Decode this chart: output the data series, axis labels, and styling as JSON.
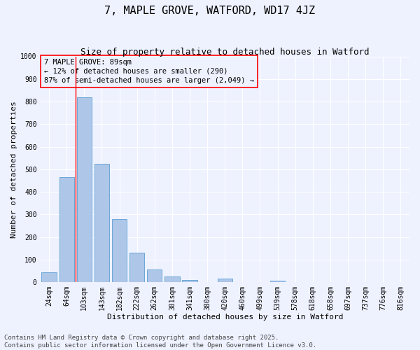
{
  "title": "7, MAPLE GROVE, WATFORD, WD17 4JZ",
  "subtitle": "Size of property relative to detached houses in Watford",
  "xlabel": "Distribution of detached houses by size in Watford",
  "ylabel": "Number of detached properties",
  "footer_line1": "Contains HM Land Registry data © Crown copyright and database right 2025.",
  "footer_line2": "Contains public sector information licensed under the Open Government Licence v3.0.",
  "categories": [
    "24sqm",
    "64sqm",
    "103sqm",
    "143sqm",
    "182sqm",
    "222sqm",
    "262sqm",
    "301sqm",
    "341sqm",
    "380sqm",
    "420sqm",
    "460sqm",
    "499sqm",
    "539sqm",
    "578sqm",
    "618sqm",
    "658sqm",
    "697sqm",
    "737sqm",
    "776sqm",
    "816sqm"
  ],
  "values": [
    45,
    465,
    820,
    525,
    280,
    130,
    58,
    25,
    10,
    0,
    15,
    0,
    0,
    7,
    0,
    0,
    0,
    0,
    0,
    0,
    0
  ],
  "bar_color": "#aec6e8",
  "bar_edge_color": "#5a9fd4",
  "vline_x": 2.0,
  "vline_color": "red",
  "annotation_text": "7 MAPLE GROVE: 89sqm\n← 12% of detached houses are smaller (290)\n87% of semi-detached houses are larger (2,049) →",
  "annotation_box_color": "red",
  "ylim": [
    0,
    1000
  ],
  "yticks": [
    0,
    100,
    200,
    300,
    400,
    500,
    600,
    700,
    800,
    900,
    1000
  ],
  "background_color": "#eef2ff",
  "grid_color": "#ffffff",
  "title_fontsize": 11,
  "subtitle_fontsize": 9,
  "axis_label_fontsize": 8,
  "tick_fontsize": 7,
  "annotation_fontsize": 7.5,
  "footer_fontsize": 6.5
}
